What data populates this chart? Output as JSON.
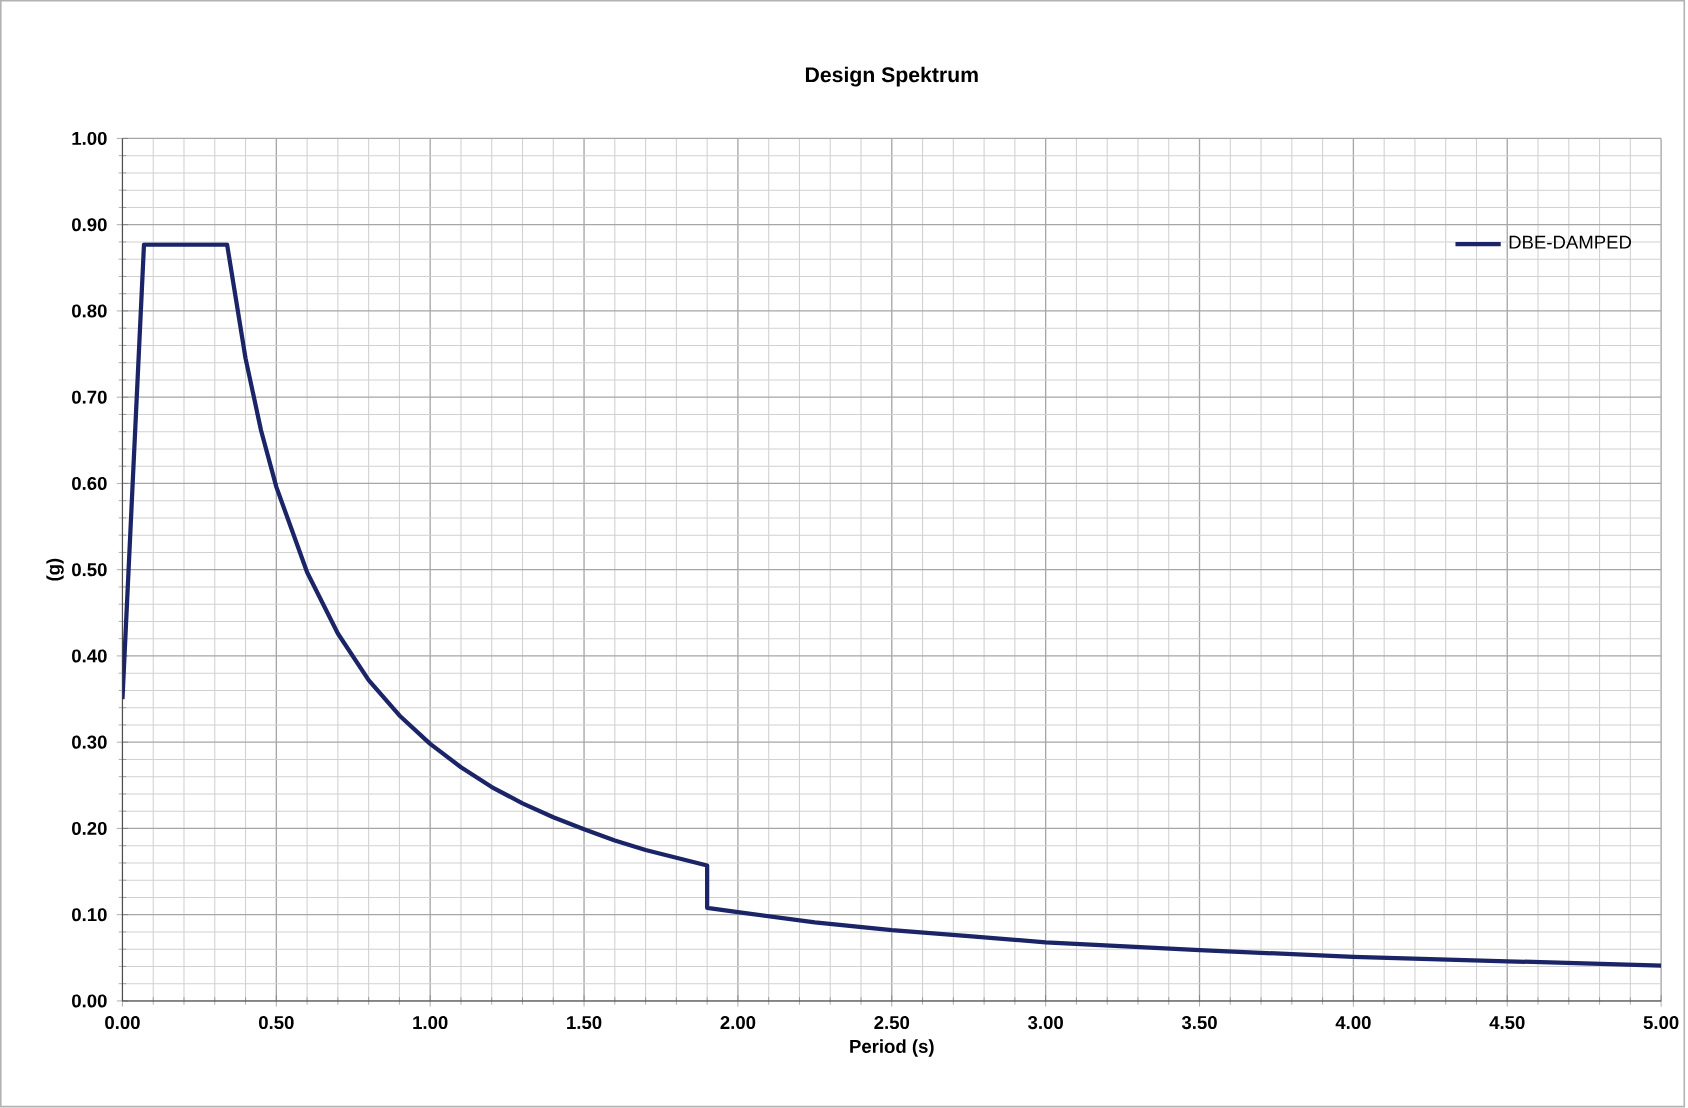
{
  "chart_data": {
    "type": "line",
    "title": "Design Spektrum",
    "xlabel": "Period (s)",
    "ylabel": "(g)",
    "series": [
      {
        "name": "DBE-DAMPED",
        "color": "#1a2466",
        "x": [
          0,
          0.07,
          0.34,
          0.4,
          0.45,
          0.5,
          0.6,
          0.7,
          0.8,
          0.9,
          1.0,
          1.1,
          1.2,
          1.3,
          1.4,
          1.5,
          1.6,
          1.7,
          1.8,
          1.9,
          1.9,
          2.0,
          2.25,
          2.5,
          2.75,
          3.0,
          3.5,
          4.0,
          4.5,
          5.0
        ],
        "values": [
          0.35,
          0.877,
          0.877,
          0.745,
          0.662,
          0.596,
          0.497,
          0.426,
          0.372,
          0.331,
          0.298,
          0.271,
          0.248,
          0.229,
          0.213,
          0.199,
          0.186,
          0.175,
          0.166,
          0.157,
          0.108,
          0.103,
          0.091,
          0.082,
          0.075,
          0.068,
          0.059,
          0.051,
          0.046,
          0.041
        ]
      }
    ],
    "xlim": [
      0,
      5
    ],
    "ylim": [
      0,
      1
    ],
    "xticks": [
      {
        "value": 0,
        "label": "0.00"
      },
      {
        "value": 0.5,
        "label": "0.50"
      },
      {
        "value": 1,
        "label": "1.00"
      },
      {
        "value": 1.5,
        "label": "1.50"
      },
      {
        "value": 2,
        "label": "2.00"
      },
      {
        "value": 2.5,
        "label": "2.50"
      },
      {
        "value": 3,
        "label": "3.00"
      },
      {
        "value": 3.5,
        "label": "3.50"
      },
      {
        "value": 4,
        "label": "4.00"
      },
      {
        "value": 4.5,
        "label": "4.50"
      },
      {
        "value": 5,
        "label": "5.00"
      }
    ],
    "yticks": [
      {
        "value": 0,
        "label": "0.00"
      },
      {
        "value": 0.1,
        "label": "0.10"
      },
      {
        "value": 0.2,
        "label": "0.20"
      },
      {
        "value": 0.3,
        "label": "0.30"
      },
      {
        "value": 0.4,
        "label": "0.40"
      },
      {
        "value": 0.5,
        "label": "0.50"
      },
      {
        "value": 0.6,
        "label": "0.60"
      },
      {
        "value": 0.7,
        "label": "0.70"
      },
      {
        "value": 0.8,
        "label": "0.80"
      },
      {
        "value": 0.9,
        "label": "0.90"
      },
      {
        "value": 1,
        "label": "1.00"
      }
    ],
    "grid": true,
    "legend": "top right",
    "marker": "none",
    "line_style": "solid"
  }
}
